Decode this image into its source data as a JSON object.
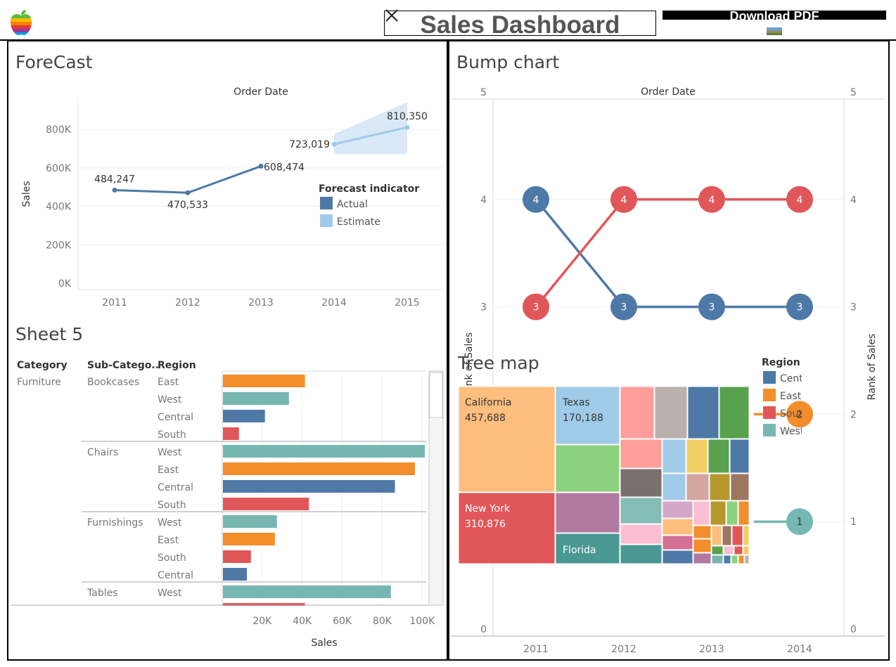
{
  "header": {
    "title": "Sales Dashboard",
    "download_label": "Download PDF",
    "logo_icon": "apple-logo-icon",
    "close_icon": "close-icon"
  },
  "forecast": {
    "title": "ForeCast",
    "column_header": "Order Date",
    "y_axis_label": "Sales",
    "legend_title": "Forecast indicator",
    "legend_items": [
      "Actual",
      "Estimate"
    ],
    "y_ticks": [
      "0K",
      "200K",
      "400K",
      "600K",
      "800K"
    ],
    "x_ticks": [
      "2011",
      "2012",
      "2013",
      "2014",
      "2015"
    ],
    "colors": {
      "actual": "#4e79a7",
      "estimate": "#a0cbe8",
      "band": "#dbe9f6"
    }
  },
  "sheet5": {
    "title": "Sheet 5",
    "headers": [
      "Category",
      "Sub-Catego..",
      "Region"
    ],
    "category": "Furniture",
    "x_axis_label": "Sales",
    "x_ticks": [
      "20K",
      "40K",
      "60K",
      "80K",
      "100K"
    ]
  },
  "bump": {
    "title": "Bump chart",
    "column_header": "Order Date",
    "y_axis_label_left": "Rank of Sales",
    "y_axis_label_right": "Rank of Sales",
    "y_ticks": [
      "0",
      "1",
      "2",
      "3",
      "4",
      "5"
    ],
    "x_ticks": [
      "2011",
      "2012",
      "2013",
      "2014"
    ]
  },
  "treemap": {
    "title": "Tree map",
    "legend_title": "Region",
    "legend_items": [
      {
        "label": "Central",
        "color": "#4e79a7"
      },
      {
        "label": "East",
        "color": "#f28e2b"
      },
      {
        "label": "South",
        "color": "#e15759"
      },
      {
        "label": "West",
        "color": "#76b7b2"
      }
    ],
    "labels": [
      {
        "name": "California",
        "value": "457,688"
      },
      {
        "name": "Texas",
        "value": "170,188"
      },
      {
        "name": "New York",
        "value": "310,876"
      },
      {
        "name": "Florida",
        "value": ""
      }
    ]
  },
  "chart_data": [
    {
      "type": "line",
      "title": "ForeCast",
      "xlabel": "Order Date",
      "ylabel": "Sales",
      "x": [
        2011,
        2012,
        2013,
        2014,
        2015
      ],
      "ylim": [
        0,
        900000
      ],
      "series": [
        {
          "name": "Actual",
          "x": [
            2011,
            2012,
            2013
          ],
          "values": [
            484247,
            470533,
            608474
          ],
          "labels": [
            "484,247",
            "470,533",
            "608,474"
          ]
        },
        {
          "name": "Estimate",
          "x": [
            2014,
            2015
          ],
          "values": [
            723019,
            810350
          ],
          "labels": [
            "723,019",
            "810,350"
          ],
          "band_lower": [
            672000,
            672000
          ],
          "band_upper": [
            776000,
            942000
          ]
        }
      ]
    },
    {
      "type": "bar",
      "title": "Sheet 5",
      "xlabel": "Sales",
      "xlim": [
        0,
        102000
      ],
      "rows": [
        {
          "category": "Furniture",
          "sub_category": "Bookcases",
          "region": "East",
          "value": 41000
        },
        {
          "category": "Furniture",
          "sub_category": "Bookcases",
          "region": "West",
          "value": 33000
        },
        {
          "category": "Furniture",
          "sub_category": "Bookcases",
          "region": "Central",
          "value": 21000
        },
        {
          "category": "Furniture",
          "sub_category": "Bookcases",
          "region": "South",
          "value": 8000
        },
        {
          "category": "Furniture",
          "sub_category": "Chairs",
          "region": "West",
          "value": 101000
        },
        {
          "category": "Furniture",
          "sub_category": "Chairs",
          "region": "East",
          "value": 96000
        },
        {
          "category": "Furniture",
          "sub_category": "Chairs",
          "region": "Central",
          "value": 86000
        },
        {
          "category": "Furniture",
          "sub_category": "Chairs",
          "region": "South",
          "value": 43000
        },
        {
          "category": "Furniture",
          "sub_category": "Furnishings",
          "region": "West",
          "value": 27000
        },
        {
          "category": "Furniture",
          "sub_category": "Furnishings",
          "region": "East",
          "value": 26000
        },
        {
          "category": "Furniture",
          "sub_category": "Furnishings",
          "region": "South",
          "value": 14000
        },
        {
          "category": "Furniture",
          "sub_category": "Furnishings",
          "region": "Central",
          "value": 12000
        },
        {
          "category": "Furniture",
          "sub_category": "Tables",
          "region": "West",
          "value": 84000
        },
        {
          "category": "Furniture",
          "sub_category": "Tables",
          "region": "South",
          "value": 41000
        }
      ],
      "region_colors": {
        "Central": "#4e79a7",
        "East": "#f28e2b",
        "South": "#e15759",
        "West": "#76b7b2"
      }
    },
    {
      "type": "line",
      "title": "Bump chart",
      "xlabel": "Order Date",
      "ylabel": "Rank of Sales",
      "x": [
        "2011",
        "2012",
        "2013",
        "2014"
      ],
      "ylim": [
        0,
        5
      ],
      "series": [
        {
          "name": "Central",
          "color": "#4e79a7",
          "values": [
            4,
            3,
            3,
            3
          ]
        },
        {
          "name": "South",
          "color": "#e15759",
          "values": [
            3,
            4,
            4,
            4
          ]
        },
        {
          "name": "East",
          "color": "#f28e2b",
          "values": [
            null,
            null,
            null,
            2
          ]
        },
        {
          "name": "West",
          "color": "#76b7b2",
          "values": [
            null,
            null,
            null,
            1
          ]
        }
      ]
    },
    {
      "type": "heatmap",
      "title": "Tree map",
      "labeled_cells": [
        {
          "name": "California",
          "value": 457688,
          "color": "#ffbe7d"
        },
        {
          "name": "New York",
          "value": 310876,
          "color": "#e15759"
        },
        {
          "name": "Texas",
          "value": 170188,
          "color": "#a0cbe8"
        },
        {
          "name": "Florida",
          "color": "#499894"
        }
      ]
    }
  ]
}
